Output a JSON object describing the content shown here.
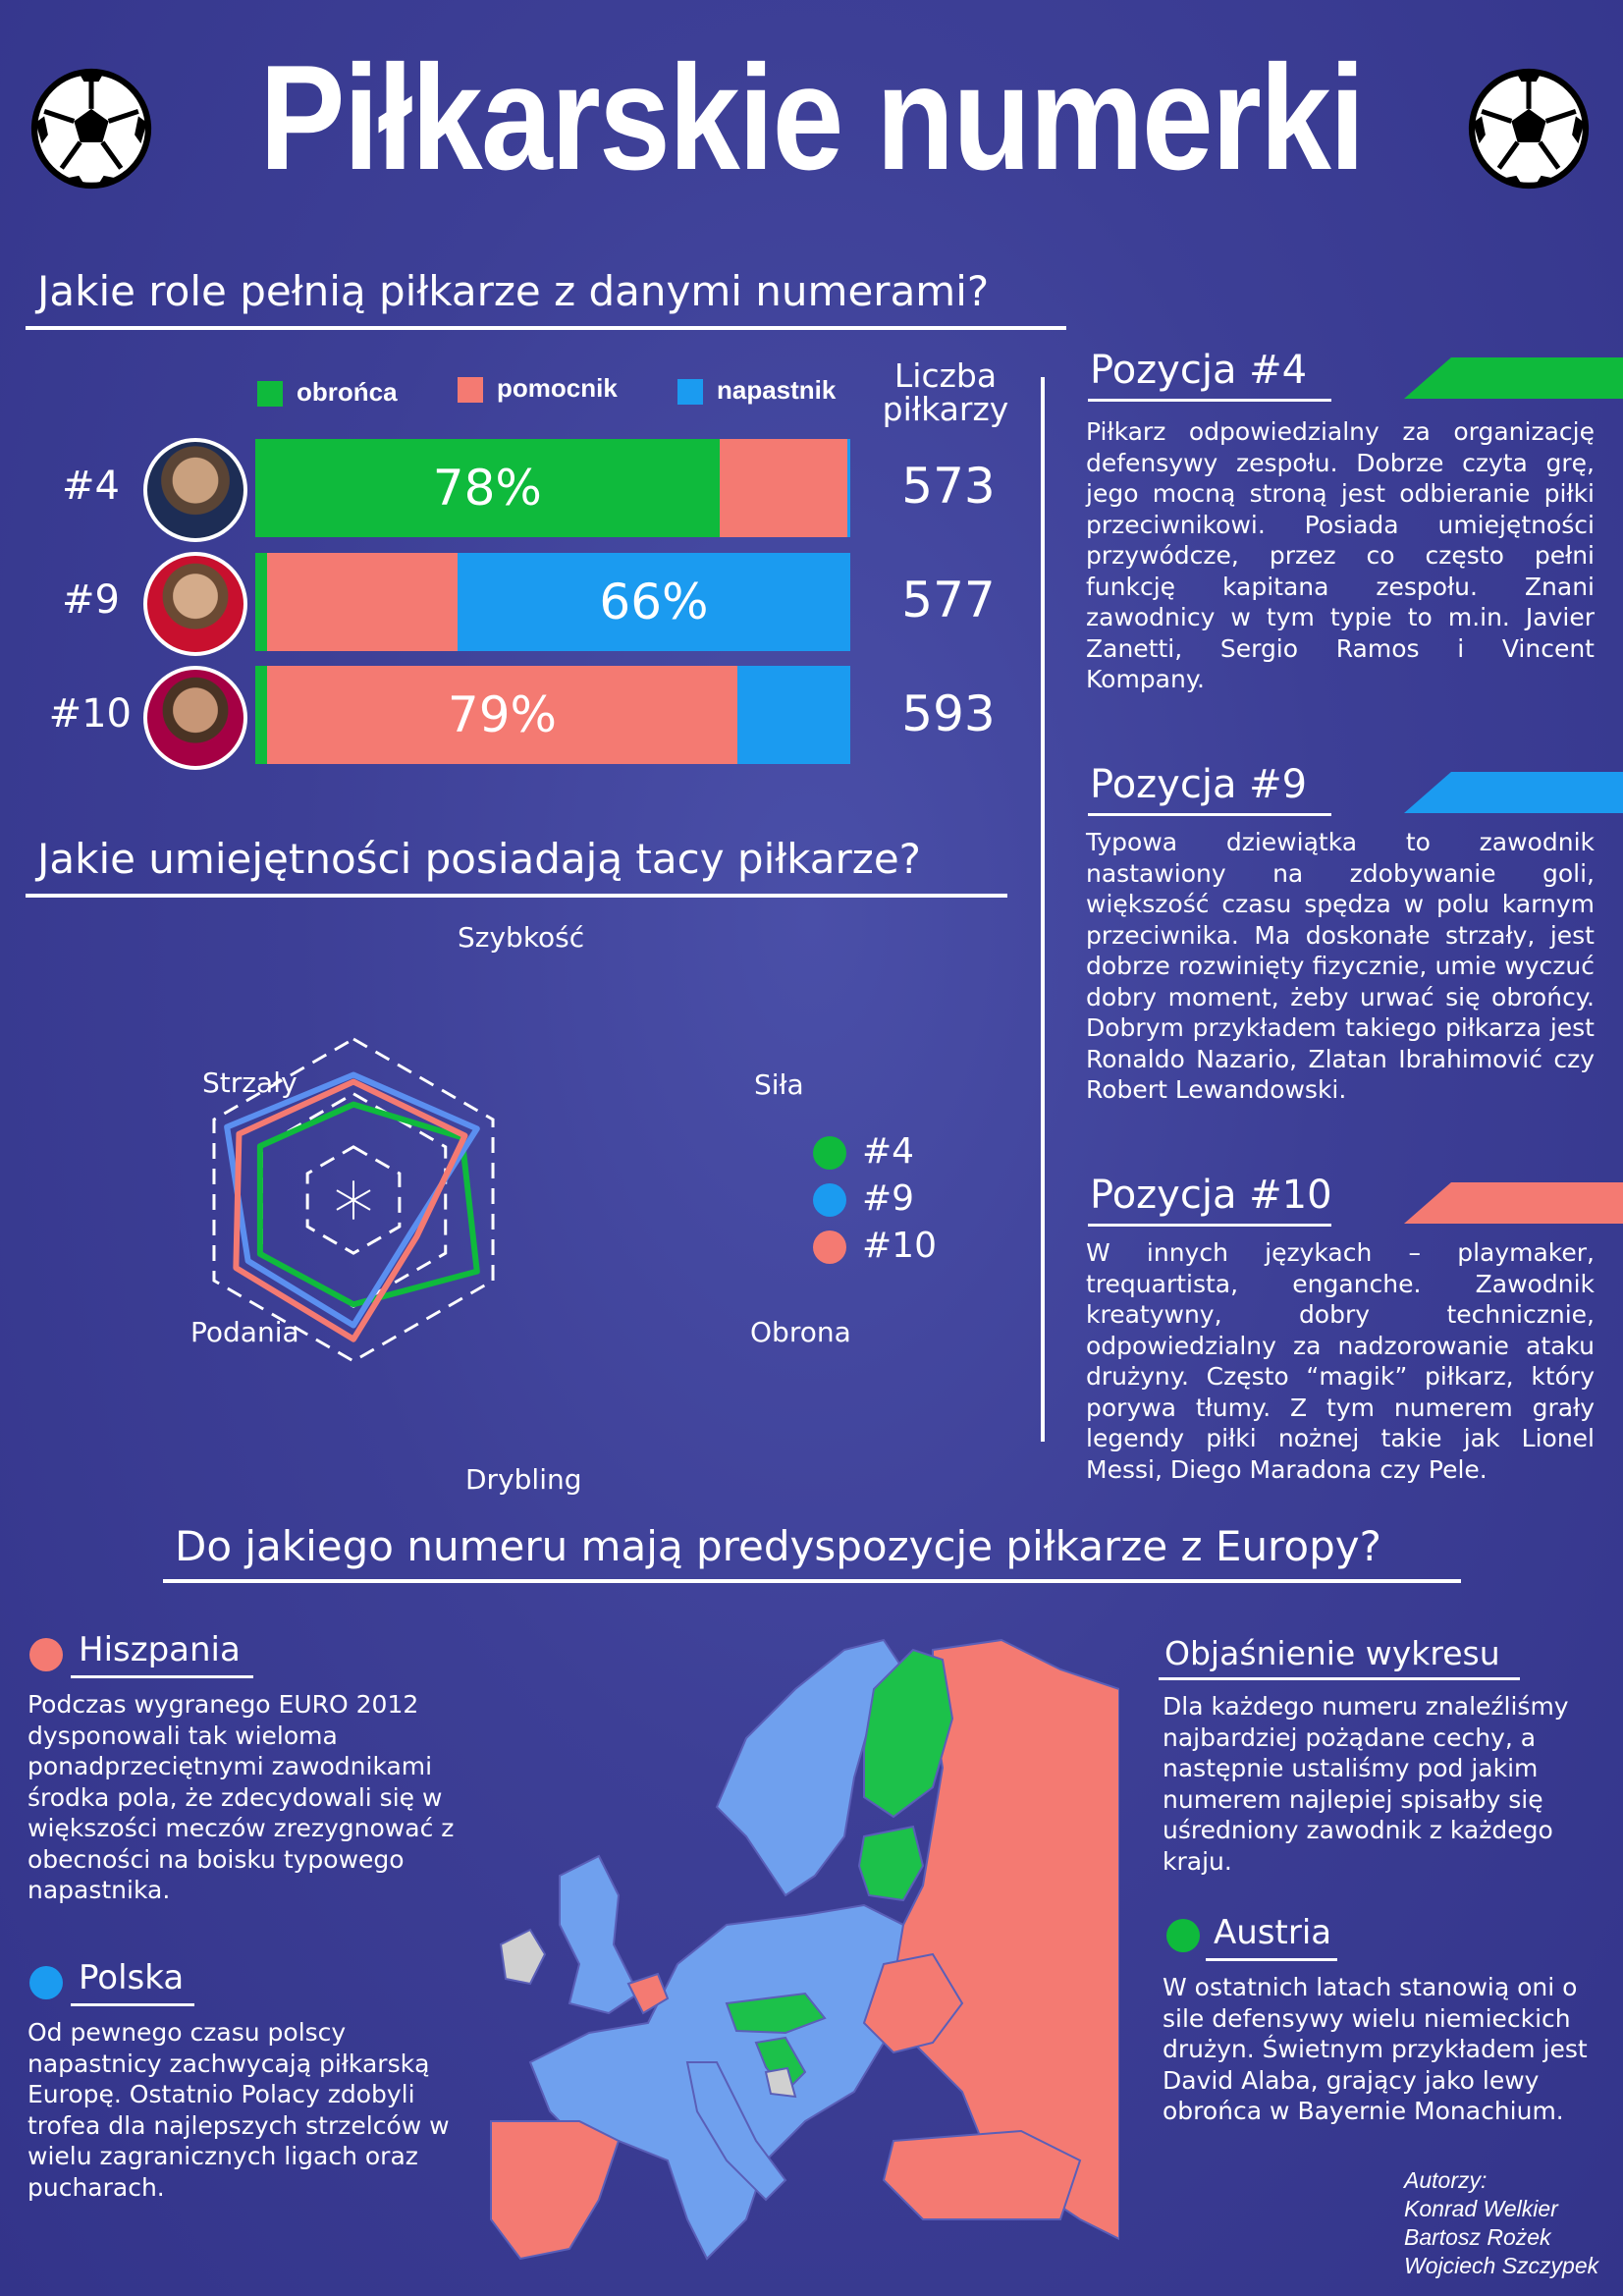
{
  "title": "Piłkarskie numerki",
  "colors": {
    "defender": "#0fba3c",
    "midfielder": "#f47a72",
    "forward": "#1b9bf0"
  },
  "roles": {
    "heading": "Jakie role pełnią piłkarze z danymi numerami?",
    "legend": [
      "obrońca",
      "pomocnik",
      "napastnik"
    ],
    "count_header": "Liczba piłkarzy",
    "rows": [
      {
        "label": "#4",
        "bar_label": "78%",
        "shares": {
          "obronca": 78,
          "pomocnik": 21.5,
          "napastnik": 0.5
        },
        "count": "573"
      },
      {
        "label": "#9",
        "bar_label": "66%",
        "shares": {
          "obronca": 2,
          "pomocnik": 32,
          "napastnik": 66
        },
        "count": "577"
      },
      {
        "label": "#10",
        "bar_label": "79%",
        "shares": {
          "obronca": 2,
          "pomocnik": 79,
          "napastnik": 19
        },
        "count": "593"
      }
    ]
  },
  "skills": {
    "heading": "Jakie umiejętności posiadają tacy piłkarze?",
    "axes": [
      "Szybkość",
      "Siła",
      "Obrona",
      "Drybling",
      "Podania",
      "Strzały"
    ],
    "series": [
      {
        "name": "#4",
        "color": "#0fba3c",
        "values": [
          0.55,
          0.72,
          0.82,
          0.6,
          0.62,
          0.62
        ]
      },
      {
        "name": "#9",
        "color": "#5b8ff0",
        "values": [
          0.72,
          0.82,
          0.38,
          0.72,
          0.7,
          0.84
        ]
      },
      {
        "name": "#10",
        "color": "#f47a72",
        "values": [
          0.68,
          0.74,
          0.42,
          0.8,
          0.78,
          0.76
        ]
      }
    ]
  },
  "positions": [
    {
      "title": "Pozycja #4",
      "color": "#0fba3c",
      "text": "Piłkarz odpowiedzialny za organizację defensywy zespołu. Dobrze czyta grę, jego mocną stroną jest odbieranie piłki przeciwnikowi. Posiada umiejętności przywódcze, przez co często pełni funkcję kapitana zespołu. Znani zawodnicy w tym typie to m.in. Javier Zanetti, Sergio Ramos i Vincent Kompany."
    },
    {
      "title": "Pozycja #9",
      "color": "#1b9bf0",
      "text": "Typowa dziewiątka to zawodnik nastawiony na zdobywanie goli, większość czasu spędza w polu karnym przeciwnika. Ma doskonałe strzały, jest dobrze rozwinięty fizycznie, umie wyczuć dobry moment, żeby urwać się obrońcy. Dobrym przykładem takiego piłkarza jest Ronaldo Nazario, Zlatan Ibrahimović czy Robert Lewandowski."
    },
    {
      "title": "Pozycja #10",
      "color": "#f47a72",
      "text": "W innych językach – playmaker, trequartista, enganche. Zawodnik kreatywny, dobry technicznie, odpowiedzialny za nadzorowanie ataku drużyny. Często “magik” piłkarz, który porywa tłumy. Z tym numerem grały legendy piłki nożnej takie jak Lionel Messi, Diego Maradona czy Pele."
    }
  ],
  "europe": {
    "heading": "Do jakiego numeru mają predyspozycje piłkarze z Europy?",
    "spain": {
      "title": "Hiszpania",
      "color": "#f47a72",
      "text": "Podczas wygranego EURO 2012 dysponowali tak wieloma ponadprzeciętnymi zawodnikami środka pola, że zdecydowali się w większości meczów zrezygnować z obecności na boisku typowego napastnika."
    },
    "poland": {
      "title": "Polska",
      "color": "#1b9bf0",
      "text": "Od pewnego czasu polscy napastnicy zachwycają piłkarską Europę. Ostatnio Polacy zdobyli trofea dla najlepszych strzelców w wielu zagranicznych ligach oraz pucharach."
    },
    "explain": {
      "title": "Objaśnienie wykresu",
      "text": "Dla każdego numeru znaleźliśmy najbardziej pożądane cechy, a następnie ustaliśmy pod jakim numerem najlepiej spisałby się uśredniony zawodnik z każdego kraju."
    },
    "austria": {
      "title": "Austria",
      "color": "#0fba3c",
      "text": "W ostatnich latach stanowią oni o sile defensywy wielu niemieckich drużyn. Świetnym przykładem jest David Alaba, grający jako lewy obrońca w Bayernie Monachium."
    }
  },
  "authors": {
    "label": "Autorzy:",
    "names": [
      "Konrad Welkier",
      "Bartosz Rożek",
      "Wojciech Szczypek"
    ]
  }
}
